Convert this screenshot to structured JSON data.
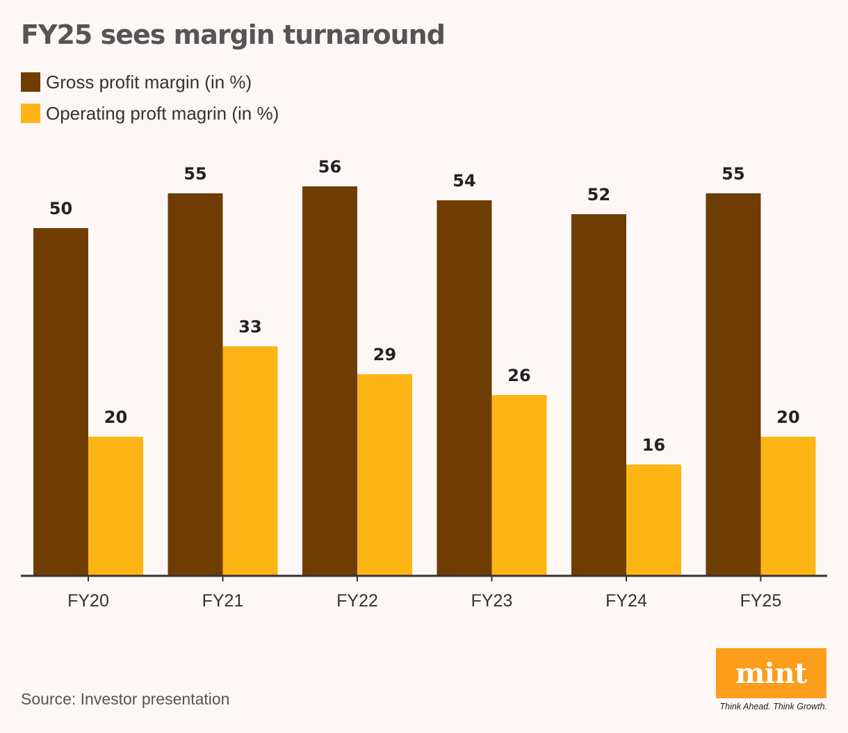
{
  "colors": {
    "background": "#fdf7f6",
    "gross": "#6f3d01",
    "operating": "#fdb515",
    "axis": "#333333",
    "logo": "#fc9d1b"
  },
  "chart_data": {
    "type": "bar",
    "title": "FY25 sees margin turnaround",
    "categories": [
      "FY20",
      "FY21",
      "FY22",
      "FY23",
      "FY24",
      "FY25"
    ],
    "series": [
      {
        "name": "Gross profit margin (in %)",
        "values": [
          50,
          55,
          56,
          54,
          52,
          55
        ]
      },
      {
        "name": "Operating proft magrin (in %)",
        "values": [
          20,
          33,
          29,
          26,
          16,
          20
        ]
      }
    ],
    "xlabel": "",
    "ylabel": "",
    "ylim": [
      0,
      60
    ],
    "grid": false,
    "legend": "top-left"
  },
  "footer": {
    "source": "Source: Investor presentation",
    "logo_text": "mint",
    "tagline": "Think Ahead. Think Growth."
  }
}
